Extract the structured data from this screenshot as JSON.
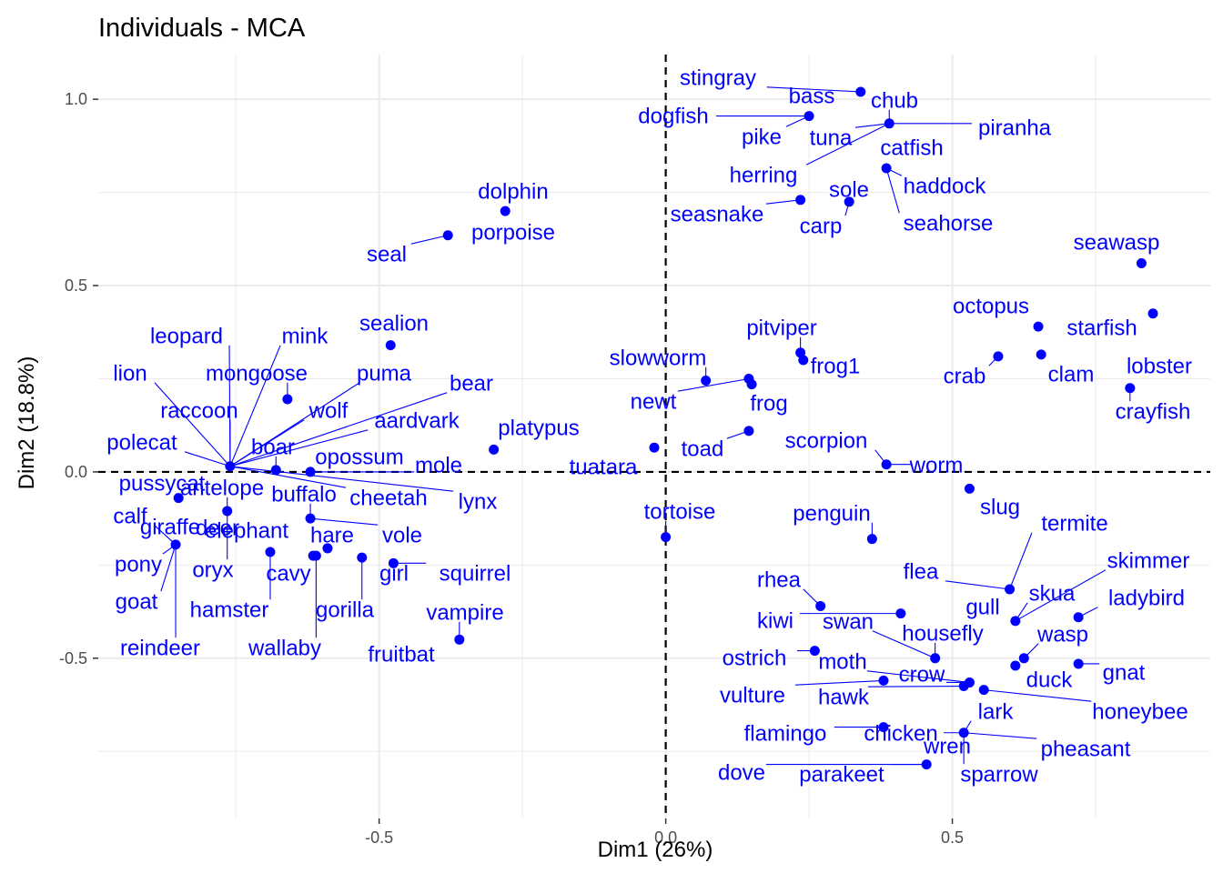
{
  "chart_data": {
    "type": "scatter",
    "title": "Individuals - MCA",
    "xlabel": "Dim1 (26%)",
    "ylabel": "Dim2 (18.8%)",
    "xlim": [
      -0.99,
      0.95
    ],
    "ylim": [
      -0.93,
      1.12
    ],
    "x_ticks": [
      -0.5,
      0.0,
      0.5
    ],
    "x_tick_labels": [
      "-0.5",
      "0.0",
      "0.5"
    ],
    "y_ticks": [
      -0.5,
      0.0,
      0.5,
      1.0
    ],
    "y_tick_labels": [
      "-0.5",
      "0.0",
      "0.5",
      "1.0"
    ],
    "grid": true,
    "reference_lines": {
      "x": 0,
      "y": 0,
      "style": "dashed"
    },
    "point_color": "#0000ff",
    "label_color": "#0000ff",
    "axis_text_color": "#4d4d4d",
    "grid_color": "#ebebeb",
    "points": [
      {
        "x": 0.34,
        "y": 1.02,
        "label": "stingray"
      },
      {
        "x": 0.25,
        "y": 0.955,
        "label": "bass"
      },
      {
        "x": 0.39,
        "y": 0.935,
        "label": "chub"
      },
      {
        "x": 0.39,
        "y": 0.935,
        "label": "piranha"
      },
      {
        "x": 0.39,
        "y": 0.935,
        "label": "herring"
      },
      {
        "x": 0.39,
        "y": 0.935,
        "label": "tuna"
      },
      {
        "x": 0.25,
        "y": 0.955,
        "label": "dogfish"
      },
      {
        "x": 0.25,
        "y": 0.955,
        "label": "pike"
      },
      {
        "x": 0.385,
        "y": 0.815,
        "label": "catfish"
      },
      {
        "x": 0.385,
        "y": 0.815,
        "label": "haddock"
      },
      {
        "x": 0.385,
        "y": 0.815,
        "label": "seahorse"
      },
      {
        "x": 0.32,
        "y": 0.725,
        "label": "sole"
      },
      {
        "x": 0.32,
        "y": 0.725,
        "label": "carp"
      },
      {
        "x": 0.235,
        "y": 0.73,
        "label": "seasnake"
      },
      {
        "x": -0.28,
        "y": 0.7,
        "label": "dolphin"
      },
      {
        "x": -0.28,
        "y": 0.7,
        "label": "porpoise"
      },
      {
        "x": -0.38,
        "y": 0.635,
        "label": "seal"
      },
      {
        "x": 0.83,
        "y": 0.56,
        "label": "seawasp"
      },
      {
        "x": 0.85,
        "y": 0.425,
        "label": "starfish"
      },
      {
        "x": 0.65,
        "y": 0.39,
        "label": "octopus"
      },
      {
        "x": 0.655,
        "y": 0.315,
        "label": "clam"
      },
      {
        "x": 0.58,
        "y": 0.31,
        "label": "crab"
      },
      {
        "x": 0.81,
        "y": 0.225,
        "label": "lobster"
      },
      {
        "x": 0.81,
        "y": 0.225,
        "label": "crayfish"
      },
      {
        "x": -0.48,
        "y": 0.34,
        "label": "sealion"
      },
      {
        "x": 0.235,
        "y": 0.32,
        "label": "pitviper"
      },
      {
        "x": 0.24,
        "y": 0.3,
        "label": "frog1"
      },
      {
        "x": 0.07,
        "y": 0.245,
        "label": "slowworm"
      },
      {
        "x": 0.145,
        "y": 0.25,
        "label": "newt"
      },
      {
        "x": 0.15,
        "y": 0.235,
        "label": "frog"
      },
      {
        "x": 0.145,
        "y": 0.11,
        "label": "toad"
      },
      {
        "x": -0.3,
        "y": 0.06,
        "label": "platypus"
      },
      {
        "x": -0.02,
        "y": 0.065,
        "label": "tuatara"
      },
      {
        "x": 0.385,
        "y": 0.02,
        "label": "scorpion"
      },
      {
        "x": 0.385,
        "y": 0.02,
        "label": "worm"
      },
      {
        "x": 0.53,
        "y": -0.045,
        "label": "slug"
      },
      {
        "x": -0.76,
        "y": 0.015,
        "label": "leopard"
      },
      {
        "x": -0.76,
        "y": 0.015,
        "label": "lion"
      },
      {
        "x": -0.76,
        "y": 0.015,
        "label": "mink"
      },
      {
        "x": -0.66,
        "y": 0.195,
        "label": "mongoose"
      },
      {
        "x": -0.76,
        "y": 0.015,
        "label": "raccoon"
      },
      {
        "x": -0.76,
        "y": 0.015,
        "label": "polecat"
      },
      {
        "x": -0.76,
        "y": 0.015,
        "label": "puma"
      },
      {
        "x": -0.76,
        "y": 0.015,
        "label": "bear"
      },
      {
        "x": -0.76,
        "y": 0.015,
        "label": "wolf"
      },
      {
        "x": -0.76,
        "y": 0.015,
        "label": "aardvark"
      },
      {
        "x": -0.68,
        "y": 0.005,
        "label": "boar"
      },
      {
        "x": -0.62,
        "y": 0.0,
        "label": "opossum"
      },
      {
        "x": -0.62,
        "y": 0.0,
        "label": "mole"
      },
      {
        "x": -0.76,
        "y": 0.015,
        "label": "cheetah"
      },
      {
        "x": -0.76,
        "y": 0.015,
        "label": "lynx"
      },
      {
        "x": -0.85,
        "y": -0.07,
        "label": "pussycat"
      },
      {
        "x": -0.765,
        "y": -0.105,
        "label": "antelope"
      },
      {
        "x": -0.62,
        "y": -0.125,
        "label": "buffalo"
      },
      {
        "x": -0.62,
        "y": -0.125,
        "label": "vole"
      },
      {
        "x": -0.855,
        "y": -0.195,
        "label": "calf"
      },
      {
        "x": -0.855,
        "y": -0.195,
        "label": "giraffe"
      },
      {
        "x": -0.765,
        "y": -0.105,
        "label": "deer"
      },
      {
        "x": -0.69,
        "y": -0.215,
        "label": "elephant"
      },
      {
        "x": -0.59,
        "y": -0.205,
        "label": "hare"
      },
      {
        "x": -0.615,
        "y": -0.225,
        "label": "cavy"
      },
      {
        "x": -0.53,
        "y": -0.23,
        "label": "gorilla"
      },
      {
        "x": -0.475,
        "y": -0.245,
        "label": "girl"
      },
      {
        "x": -0.475,
        "y": -0.245,
        "label": "squirrel"
      },
      {
        "x": -0.855,
        "y": -0.195,
        "label": "pony"
      },
      {
        "x": -0.765,
        "y": -0.105,
        "label": "oryx"
      },
      {
        "x": -0.855,
        "y": -0.195,
        "label": "goat"
      },
      {
        "x": -0.69,
        "y": -0.215,
        "label": "hamster"
      },
      {
        "x": -0.855,
        "y": -0.195,
        "label": "reindeer"
      },
      {
        "x": -0.61,
        "y": -0.225,
        "label": "wallaby"
      },
      {
        "x": -0.36,
        "y": -0.45,
        "label": "vampire"
      },
      {
        "x": -0.36,
        "y": -0.45,
        "label": "fruitbat"
      },
      {
        "x": 0.0,
        "y": -0.175,
        "label": "tortoise"
      },
      {
        "x": 0.36,
        "y": -0.18,
        "label": "penguin"
      },
      {
        "x": 0.6,
        "y": -0.315,
        "label": "termite"
      },
      {
        "x": 0.6,
        "y": -0.315,
        "label": "flea"
      },
      {
        "x": 0.61,
        "y": -0.4,
        "label": "skimmer"
      },
      {
        "x": 0.61,
        "y": -0.4,
        "label": "skua"
      },
      {
        "x": 0.61,
        "y": -0.4,
        "label": "gull"
      },
      {
        "x": 0.72,
        "y": -0.39,
        "label": "ladybird"
      },
      {
        "x": 0.27,
        "y": -0.36,
        "label": "rhea"
      },
      {
        "x": 0.41,
        "y": -0.38,
        "label": "kiwi"
      },
      {
        "x": 0.47,
        "y": -0.5,
        "label": "swan"
      },
      {
        "x": 0.47,
        "y": -0.5,
        "label": "housefly"
      },
      {
        "x": 0.625,
        "y": -0.5,
        "label": "wasp"
      },
      {
        "x": 0.26,
        "y": -0.48,
        "label": "ostrich"
      },
      {
        "x": 0.61,
        "y": -0.52,
        "label": "duck"
      },
      {
        "x": 0.72,
        "y": -0.515,
        "label": "gnat"
      },
      {
        "x": 0.53,
        "y": -0.565,
        "label": "moth"
      },
      {
        "x": 0.38,
        "y": -0.56,
        "label": "vulture"
      },
      {
        "x": 0.53,
        "y": -0.565,
        "label": "crow"
      },
      {
        "x": 0.52,
        "y": -0.575,
        "label": "hawk"
      },
      {
        "x": 0.555,
        "y": -0.585,
        "label": "honeybee"
      },
      {
        "x": 0.52,
        "y": -0.7,
        "label": "lark"
      },
      {
        "x": 0.38,
        "y": -0.685,
        "label": "flamingo"
      },
      {
        "x": 0.52,
        "y": -0.7,
        "label": "chicken"
      },
      {
        "x": 0.52,
        "y": -0.7,
        "label": "pheasant"
      },
      {
        "x": 0.455,
        "y": -0.785,
        "label": "wren"
      },
      {
        "x": 0.52,
        "y": -0.7,
        "label": "sparrow"
      },
      {
        "x": 0.455,
        "y": -0.785,
        "label": "dove"
      },
      {
        "x": 0.455,
        "y": -0.785,
        "label": "parakeet"
      }
    ]
  }
}
